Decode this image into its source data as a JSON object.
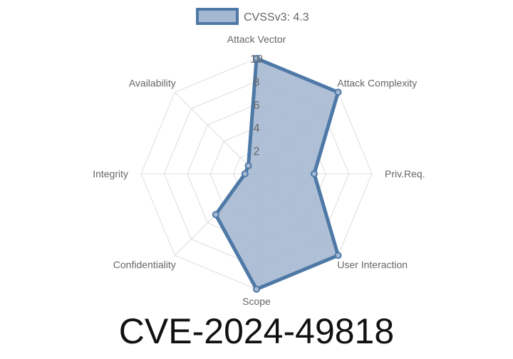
{
  "chart_data": {
    "type": "radar",
    "legend": {
      "label": "CVSSv3: 4.3",
      "placement": "top"
    },
    "axes": [
      "Attack Vector",
      "Attack Complexity",
      "Priv.Req.",
      "User Interaction",
      "Scope",
      "Confidentiality",
      "Integrity",
      "Availability"
    ],
    "series": [
      {
        "name": "CVSSv3: 4.3",
        "values": [
          10,
          10,
          5,
          10,
          10,
          5,
          1,
          1
        ]
      }
    ],
    "rlim": [
      0,
      10
    ],
    "ticks": [
      "2",
      "4",
      "6",
      "8",
      "10"
    ],
    "grid": true,
    "colors": {
      "line": "#4e79a7",
      "fill": "#a5b8d1",
      "grid": "#dddddd"
    }
  },
  "title": "CVE-2024-49818"
}
